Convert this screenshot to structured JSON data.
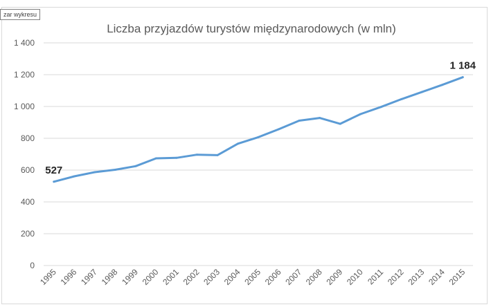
{
  "chart_area_label": "zar wykresu",
  "chart_data": {
    "type": "line",
    "title": "Liczba przyjazdów turystów międzynarodowych (w mln)",
    "xlabel": "",
    "ylabel": "",
    "categories": [
      "1995",
      "1996",
      "1997",
      "1998",
      "1999",
      "2000",
      "2001",
      "2002",
      "2003",
      "2004",
      "2005",
      "2006",
      "2007",
      "2008",
      "2009",
      "2010",
      "2011",
      "2012",
      "2013",
      "2014",
      "2015"
    ],
    "series": [
      {
        "values": [
          527,
          561,
          587,
          602,
          625,
          674,
          677,
          697,
          694,
          766,
          807,
          857,
          911,
          928,
          891,
          952,
          997,
          1046,
          1091,
          1136,
          1184
        ],
        "color": "#5b9bd5"
      }
    ],
    "ylim": [
      0,
      1400
    ],
    "yticks": [
      0,
      200,
      400,
      600,
      800,
      1000,
      1200,
      1400
    ],
    "ytick_labels": [
      "0",
      "200",
      "400",
      "600",
      "800",
      "1 000",
      "1 200",
      "1 400"
    ],
    "data_labels": [
      {
        "index": 0,
        "text": "527"
      },
      {
        "index": 20,
        "text": "1 184"
      }
    ],
    "grid": true,
    "gridline_color": "#d9d9d9",
    "legend": "none"
  }
}
